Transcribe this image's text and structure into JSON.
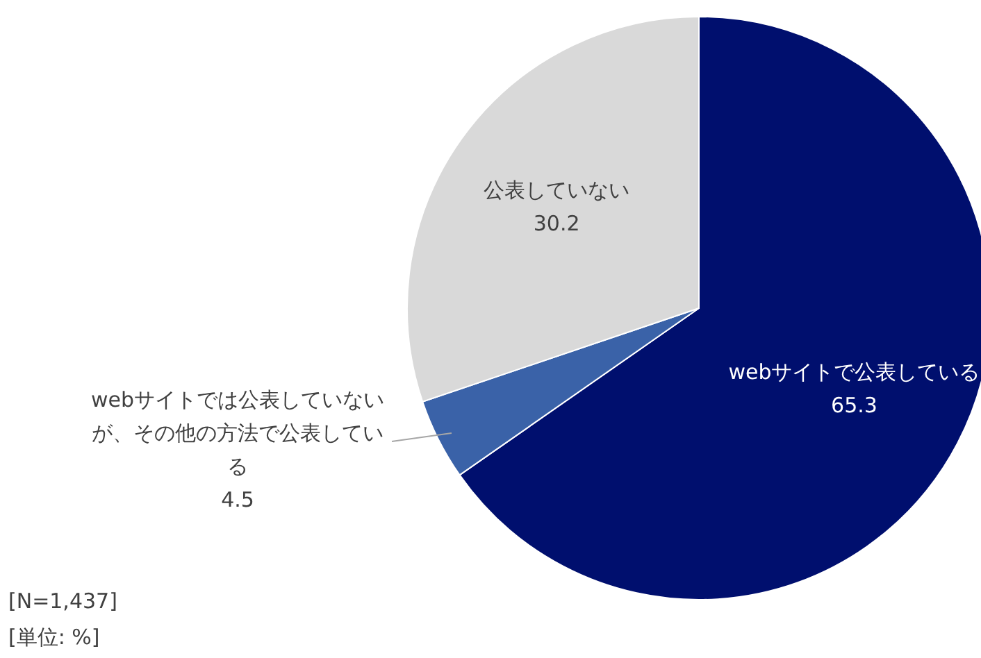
{
  "chart_data": {
    "type": "pie",
    "categories": [
      "webサイトで公表している",
      "webサイトでは公表していないが、その他の方法で公表している",
      "公表していない"
    ],
    "values": [
      65.3,
      4.5,
      30.2
    ],
    "colors": [
      "#000f6e",
      "#3a62a8",
      "#d9d9d9"
    ],
    "data_labels": true,
    "annotations": [
      "[N=1,437]",
      "[単位: %]"
    ]
  }
}
